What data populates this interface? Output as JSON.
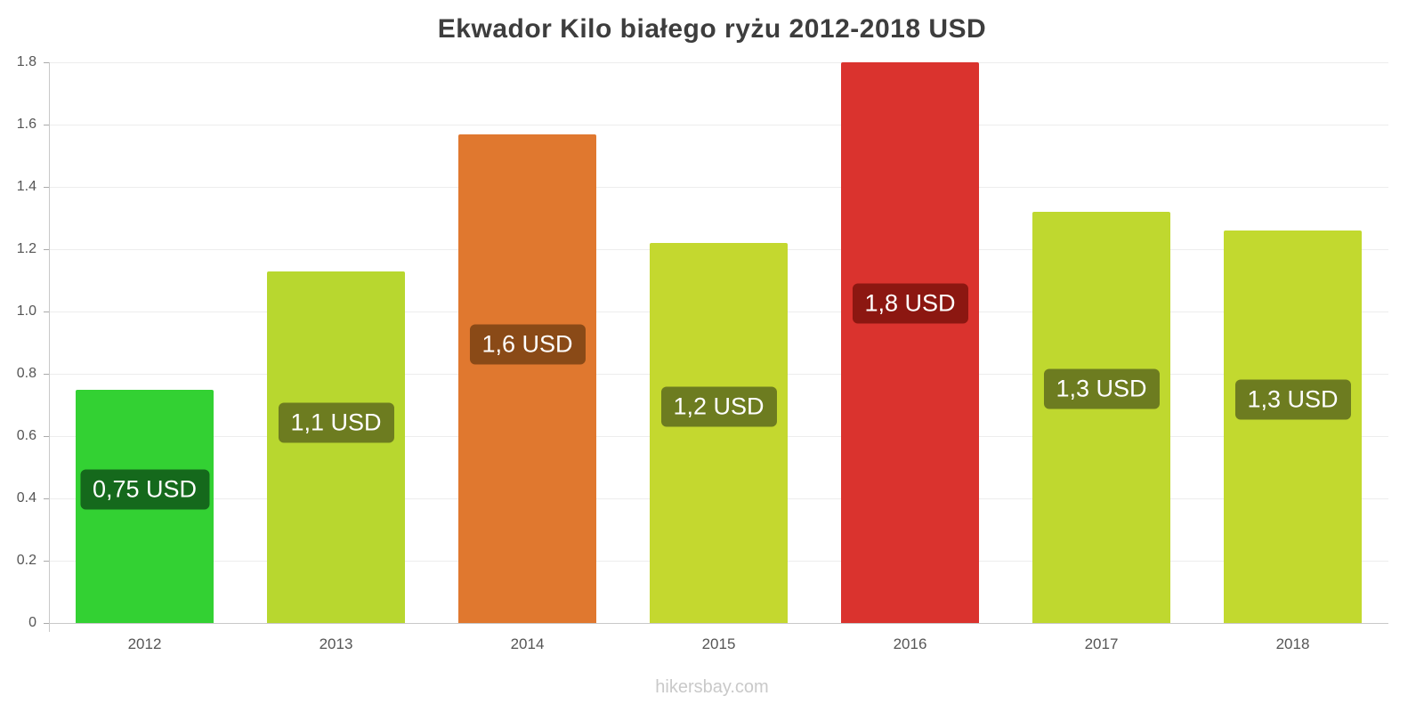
{
  "footer": "hikersbay.com",
  "chart_data": {
    "type": "bar",
    "title": "Ekwador Kilo białego ryżu 2012-2018 USD",
    "categories": [
      "2012",
      "2013",
      "2014",
      "2015",
      "2016",
      "2017",
      "2018"
    ],
    "values": [
      0.75,
      1.13,
      1.57,
      1.22,
      1.8,
      1.32,
      1.26
    ],
    "bar_labels": [
      "0,75 USD",
      "1,1 USD",
      "1,6 USD",
      "1,2 USD",
      "1,8 USD",
      "1,3 USD",
      "1,3 USD"
    ],
    "bar_colors": [
      "#33d133",
      "#b8d72f",
      "#e0782f",
      "#c4d82f",
      "#da332e",
      "#bfd82f",
      "#c2d92f"
    ],
    "bar_label_bg": [
      "#15691c",
      "#6d7c20",
      "#8a4a17",
      "#6d7c20",
      "#8c1711",
      "#6d7c20",
      "#6d7c20"
    ],
    "xlabel": "",
    "ylabel": "",
    "ylim": [
      0,
      1.8
    ],
    "yticks": [
      0,
      0.2,
      0.4,
      0.6,
      0.8,
      1.0,
      1.2,
      1.4,
      1.6,
      1.8
    ],
    "ytick_labels": [
      "0",
      "0.2",
      "0.4",
      "0.6",
      "0.8",
      "1.0",
      "1.2",
      "1.4",
      "1.6",
      "1.8"
    ],
    "grid": true,
    "legend": false
  }
}
